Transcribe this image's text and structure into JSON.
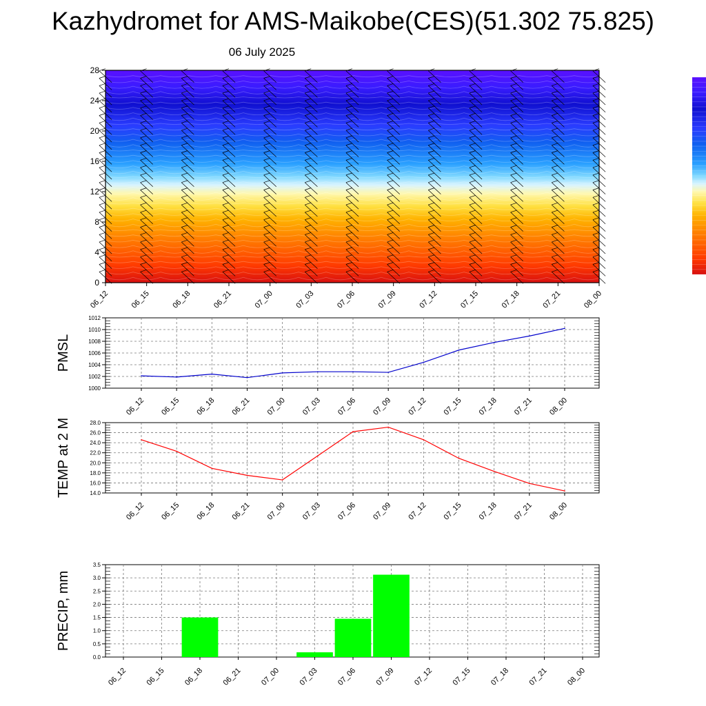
{
  "title": "Kazhydromet for AMS-Maikobe(CES)(51.302 75.825)",
  "subtitle": "06 July 2025",
  "chart_data": [
    {
      "type": "heatmap",
      "description_of_field": "temperature-colored vertical cross section with wind barbs",
      "x": [
        "06_12",
        "06_15",
        "06_18",
        "06_21",
        "07_00",
        "07_03",
        "07_06",
        "07_09",
        "07_12",
        "07_15",
        "07_18",
        "07_21",
        "08_00"
      ],
      "yticks": [
        0,
        4,
        8,
        12,
        16,
        20,
        24,
        28
      ],
      "ylim": [
        0,
        28
      ],
      "colors": [
        "#d81010",
        "#ff3a00",
        "#ff7a00",
        "#ffb300",
        "#ffe040",
        "#fff8b0",
        "#d8f4ff",
        "#7fd8ff",
        "#2aa0ff",
        "#1060f0",
        "#2a3cff",
        "#1010d0",
        "#3a1cff",
        "#5a10ff"
      ]
    },
    {
      "type": "line",
      "ylabel": "PMSL",
      "x": [
        "06_12",
        "06_15",
        "06_18",
        "06_21",
        "07_00",
        "07_03",
        "07_06",
        "07_09",
        "07_12",
        "07_15",
        "07_18",
        "07_21",
        "08_00"
      ],
      "series": [
        {
          "values": [
            1002.1,
            1001.9,
            1002.4,
            1001.8,
            1002.6,
            1002.8,
            1002.8,
            1002.7,
            1004.4,
            1006.5,
            1007.8,
            1008.9,
            1010.2
          ],
          "color": "#0000cc"
        }
      ],
      "yticks": [
        1000,
        1002,
        1004,
        1006,
        1008,
        1010,
        1012
      ],
      "ylim": [
        1000,
        1012
      ]
    },
    {
      "type": "line",
      "ylabel": "TEMP at 2 M",
      "x": [
        "06_12",
        "06_15",
        "06_18",
        "06_21",
        "07_00",
        "07_03",
        "07_06",
        "07_09",
        "07_12",
        "07_15",
        "07_18",
        "07_21",
        "08_00"
      ],
      "series": [
        {
          "values": [
            24.6,
            22.3,
            18.9,
            17.5,
            16.6,
            21.4,
            26.2,
            27.1,
            24.6,
            20.9,
            18.3,
            15.9,
            14.4
          ],
          "color": "#ff0000"
        }
      ],
      "yticks": [
        "14.0",
        "16.0",
        "18.0",
        "20.0",
        "22.0",
        "24.0",
        "26.0",
        "28.0"
      ],
      "ylim": [
        14,
        28
      ]
    },
    {
      "type": "bar",
      "ylabel": "PRECIP, mm",
      "x": [
        "06_12",
        "06_15",
        "06_18",
        "06_21",
        "07_00",
        "07_03",
        "07_06",
        "07_09",
        "07_12",
        "07_15",
        "07_18",
        "07_21",
        "08_00"
      ],
      "values": [
        0,
        0,
        1.5,
        0,
        0,
        0.18,
        1.45,
        3.12,
        0,
        0,
        0,
        0,
        0
      ],
      "color": "#00ff00",
      "yticks": [
        "0.0",
        "0.5",
        "1.0",
        "1.5",
        "2.0",
        "2.5",
        "3.0",
        "3.5"
      ],
      "ylim": [
        0,
        3.5
      ]
    }
  ]
}
